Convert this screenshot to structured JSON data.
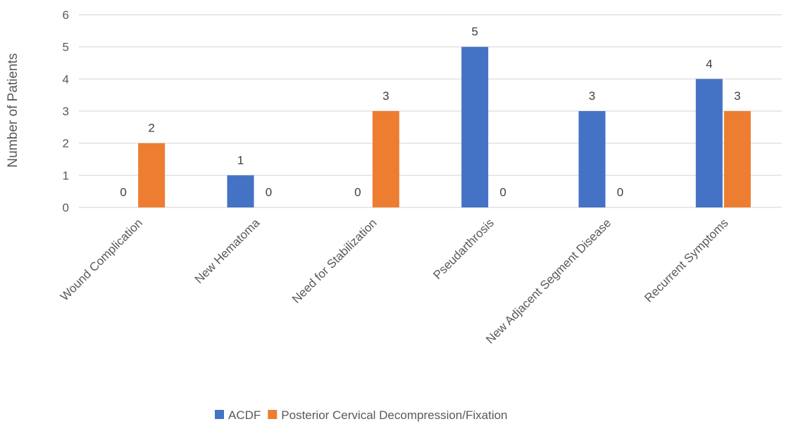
{
  "chart_data": {
    "type": "bar",
    "title": "",
    "xlabel": "",
    "ylabel": "Number of Patients",
    "ylim": [
      0,
      6
    ],
    "yticks": [
      0,
      1,
      2,
      3,
      4,
      5,
      6
    ],
    "grid": true,
    "legend_position": "bottom",
    "categories": [
      "Wound Complication",
      "New Hematoma",
      "Need for Stabilization",
      "Pseudarthrosis",
      "New Adjacent Segment Disease",
      "Recurrent Symptoms"
    ],
    "series": [
      {
        "name": "ACDF",
        "color": "#4472C4",
        "values": [
          0,
          1,
          0,
          5,
          3,
          4
        ]
      },
      {
        "name": "Posterior Cervical Decompression/Fixation",
        "color": "#ED7D31",
        "values": [
          2,
          0,
          3,
          0,
          0,
          3
        ]
      }
    ]
  }
}
